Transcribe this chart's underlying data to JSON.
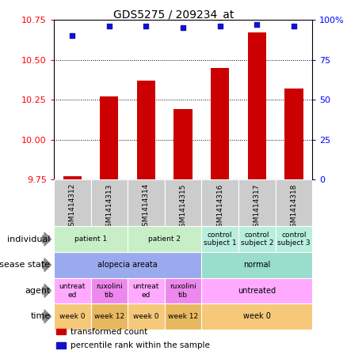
{
  "title": "GDS5275 / 209234_at",
  "samples": [
    "GSM1414312",
    "GSM1414313",
    "GSM1414314",
    "GSM1414315",
    "GSM1414316",
    "GSM1414317",
    "GSM1414318"
  ],
  "bar_values": [
    9.77,
    10.27,
    10.37,
    10.19,
    10.45,
    10.67,
    10.32
  ],
  "dot_values": [
    90,
    96,
    96,
    95,
    96,
    97,
    96
  ],
  "ylim_left": [
    9.75,
    10.75
  ],
  "ylim_right": [
    0,
    100
  ],
  "yticks_left": [
    9.75,
    10.0,
    10.25,
    10.5,
    10.75
  ],
  "yticks_right": [
    0,
    25,
    50,
    75,
    100
  ],
  "ytick_labels_right": [
    "0",
    "25",
    "50",
    "75",
    "100%"
  ],
  "bar_color": "#cc0000",
  "dot_color": "#1111cc",
  "bar_bottom": 9.75,
  "gsm_row_color": "#cccccc",
  "annotation_rows": [
    {
      "label": "individual",
      "groups": [
        {
          "text": "patient 1",
          "span": [
            0,
            2
          ],
          "color": "#c8eec8"
        },
        {
          "text": "patient 2",
          "span": [
            2,
            4
          ],
          "color": "#c8eec8"
        },
        {
          "text": "control\nsubject 1",
          "span": [
            4,
            5
          ],
          "color": "#b8eedd"
        },
        {
          "text": "control\nsubject 2",
          "span": [
            5,
            6
          ],
          "color": "#b8eedd"
        },
        {
          "text": "control\nsubject 3",
          "span": [
            6,
            7
          ],
          "color": "#b8eedd"
        }
      ]
    },
    {
      "label": "disease state",
      "groups": [
        {
          "text": "alopecia areata",
          "span": [
            0,
            4
          ],
          "color": "#99aaee"
        },
        {
          "text": "normal",
          "span": [
            4,
            7
          ],
          "color": "#99ddcc"
        }
      ]
    },
    {
      "label": "agent",
      "groups": [
        {
          "text": "untreat\ned",
          "span": [
            0,
            1
          ],
          "color": "#ffaaff"
        },
        {
          "text": "ruxolini\ntib",
          "span": [
            1,
            2
          ],
          "color": "#ee88ee"
        },
        {
          "text": "untreat\ned",
          "span": [
            2,
            3
          ],
          "color": "#ffaaff"
        },
        {
          "text": "ruxolini\ntib",
          "span": [
            3,
            4
          ],
          "color": "#ee88ee"
        },
        {
          "text": "untreated",
          "span": [
            4,
            7
          ],
          "color": "#ffaaff"
        }
      ]
    },
    {
      "label": "time",
      "groups": [
        {
          "text": "week 0",
          "span": [
            0,
            1
          ],
          "color": "#f5c87a"
        },
        {
          "text": "week 12",
          "span": [
            1,
            2
          ],
          "color": "#e8b860"
        },
        {
          "text": "week 0",
          "span": [
            2,
            3
          ],
          "color": "#f5c87a"
        },
        {
          "text": "week 12",
          "span": [
            3,
            4
          ],
          "color": "#e8b860"
        },
        {
          "text": "week 0",
          "span": [
            4,
            7
          ],
          "color": "#f5c87a"
        }
      ]
    }
  ],
  "legend_items": [
    {
      "label": "transformed count",
      "color": "#cc0000"
    },
    {
      "label": "percentile rank within the sample",
      "color": "#1111cc"
    }
  ]
}
